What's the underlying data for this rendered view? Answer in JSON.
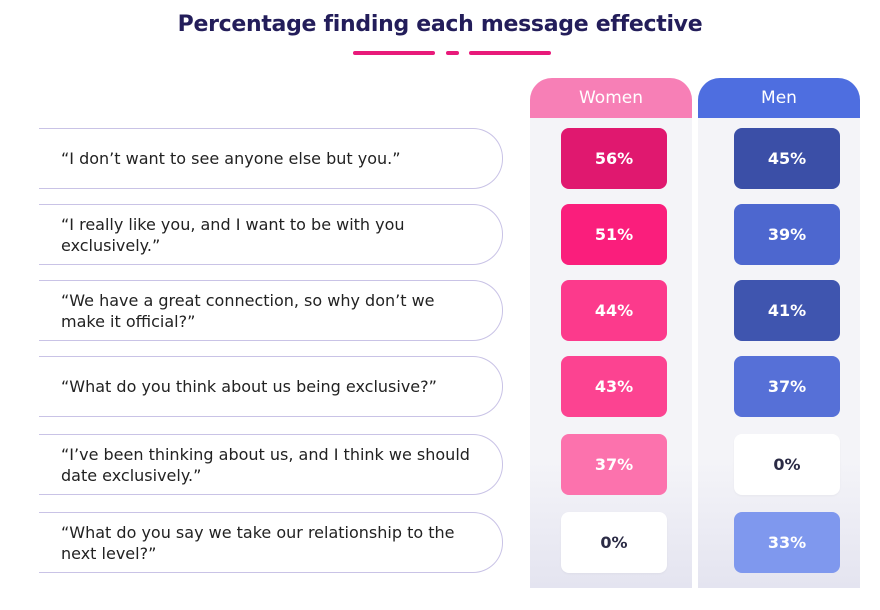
{
  "title": "Percentage finding each message effective",
  "chart_data": {
    "type": "table",
    "title": "Percentage finding each message effective",
    "columns": [
      "Women",
      "Men"
    ],
    "rows": [
      {
        "message": "“I don’t want to see anyone else but you.”",
        "women": "56%",
        "men": "45%"
      },
      {
        "message": "“I really like you, and I want to be with you exclusively.”",
        "women": "51%",
        "men": "39%"
      },
      {
        "message": "“We have a great connection, so why don’t we make it official?”",
        "women": "44%",
        "men": "41%"
      },
      {
        "message": "“What do you think about us being exclusive?”",
        "women": "43%",
        "men": "37%"
      },
      {
        "message": "“I’ve been thinking about us, and I think we should date exclusively.”",
        "women": "37%",
        "men": "0%"
      },
      {
        "message": "“What do you say we take our relationship to the next level?”",
        "women": "0%",
        "men": "33%"
      }
    ]
  },
  "colors": {
    "title": "#231d5a",
    "accent_rule": "#e81a7a",
    "women_header": "#f77fb6",
    "men_header": "#4e6ee0",
    "women_cells": [
      "#e0186f",
      "#fa1e7c",
      "#fc3a8c",
      "#fc4391",
      "#fc72ad",
      "#ffffff"
    ],
    "men_cells": [
      "#3b4fa7",
      "#4d67cf",
      "#3f55af",
      "#5670d7",
      "#ffffff",
      "#7f98ee"
    ]
  }
}
